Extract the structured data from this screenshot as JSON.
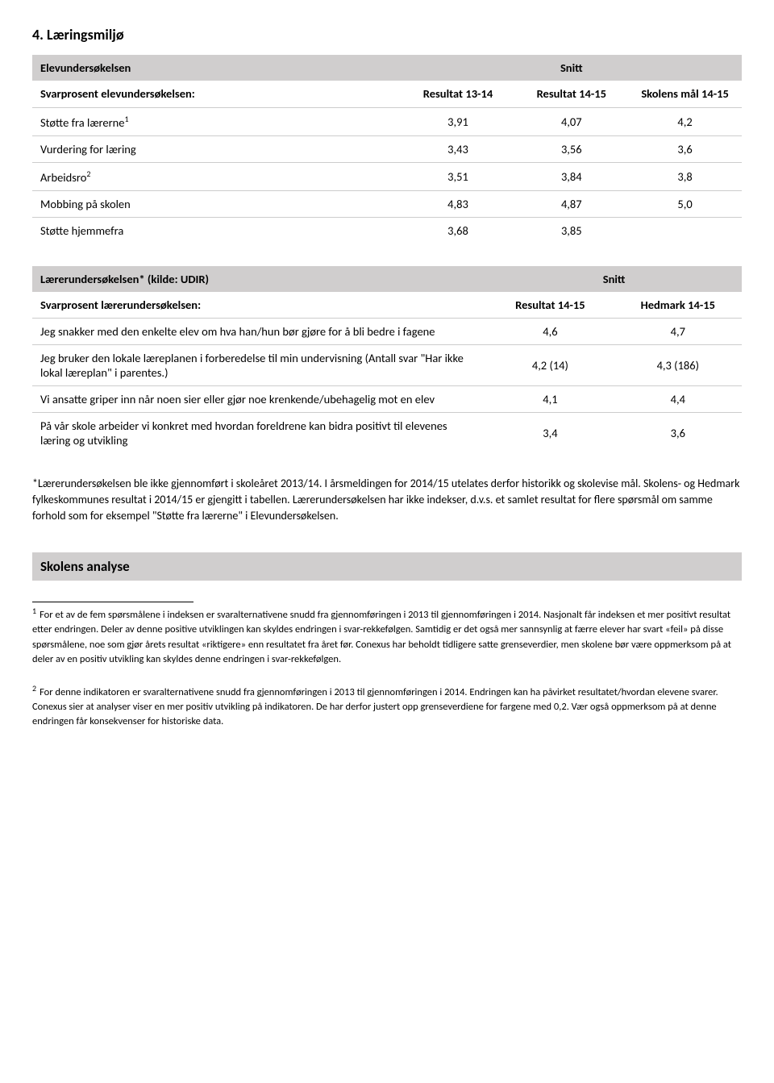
{
  "section4": {
    "title": "4. Læringsmiljø"
  },
  "table1": {
    "header_left": "Elevundersøkelsen",
    "header_right": "Snitt",
    "subheader_label": "Svarprosent elevundersøkelsen:",
    "col1": "Resultat 13-14",
    "col2": "Resultat 14-15",
    "col3": "Skolens mål 14-15",
    "rows": [
      {
        "label": "Støtte fra lærerne",
        "fn": "1",
        "c1": "3,91",
        "c2": "4,07",
        "c3": "4,2"
      },
      {
        "label": "Vurdering for læring",
        "c1": "3,43",
        "c2": "3,56",
        "c3": "3,6"
      },
      {
        "label": "Arbeidsro",
        "fn": "2",
        "c1": "3,51",
        "c2": "3,84",
        "c3": "3,8"
      },
      {
        "label": "Mobbing på skolen",
        "c1": "4,83",
        "c2": "4,87",
        "c3": "5,0"
      },
      {
        "label": "Støtte hjemmefra",
        "c1": "3,68",
        "c2": "3,85",
        "c3": ""
      }
    ]
  },
  "table2": {
    "header_left": "Lærerundersøkelsen* (kilde: UDIR)",
    "header_right": "Snitt",
    "subheader_label": "Svarprosent lærerundersøkelsen:",
    "col1": "Resultat 14-15",
    "col2": "Hedmark 14-15",
    "rows": [
      {
        "label": "Jeg snakker med den enkelte elev om hva han/hun bør gjøre for å bli bedre i fagene",
        "c1": "4,6",
        "c2": "4,7"
      },
      {
        "label": "Jeg bruker den lokale læreplanen i forberedelse til min undervisning (Antall svar \"Har ikke lokal læreplan\" i parentes.)",
        "c1": "4,2 (14)",
        "c2": "4,3 (186)"
      },
      {
        "label": "Vi ansatte griper inn når noen sier eller gjør noe krenkende/ubehagelig mot en elev",
        "c1": "4,1",
        "c2": "4,4"
      },
      {
        "label": "På vår skole arbeider vi konkret med hvordan foreldrene kan bidra positivt til elevenes læring og utvikling",
        "c1": "3,4",
        "c2": "3,6"
      }
    ],
    "footnote": "*Lærerundersøkelsen ble ikke gjennomført i skoleåret 2013/14. I årsmeldingen for 2014/15 utelates derfor historikk og skolevise mål. Skolens- og Hedmark fylkeskommunes resultat i 2014/15 er gjengitt i tabellen. Lærerundersøkelsen har ikke indekser, d.v.s. et samlet resultat for flere spørsmål om samme forhold som for eksempel \"Støtte fra lærerne\" i Elevundersøkelsen."
  },
  "analysis": {
    "title": "Skolens analyse"
  },
  "footnotes": {
    "fn1": "For et av de fem spørsmålene i indeksen er svaralternativene snudd fra gjennomføringen i 2013 til gjennomføringen i 2014. Nasjonalt får indeksen et mer positivt resultat etter endringen. Deler av denne positive utviklingen kan skyldes endringen i svar-rekkefølgen. Samtidig er det også mer sannsynlig at færre elever har svart «feil» på disse spørsmålene, noe som gjør årets resultat «riktigere» enn resultatet fra året før. Conexus har beholdt tidligere satte grenseverdier, men skolene bør være oppmerksom på at deler av en positiv utvikling kan skyldes denne endringen i svar-rekkefølgen.",
    "fn2": "For denne indikatoren er svaralternativene snudd fra gjennomføringen i 2013 til gjennomføringen i 2014. Endringen kan ha påvirket resultatet/hvordan elevene svarer. Conexus sier at analyser viser en mer positiv utvikling på indikatoren. De har derfor justert opp grenseverdiene for fargene med 0,2. Vær også oppmerksom på at denne endringen får konsekvenser for historiske data."
  }
}
